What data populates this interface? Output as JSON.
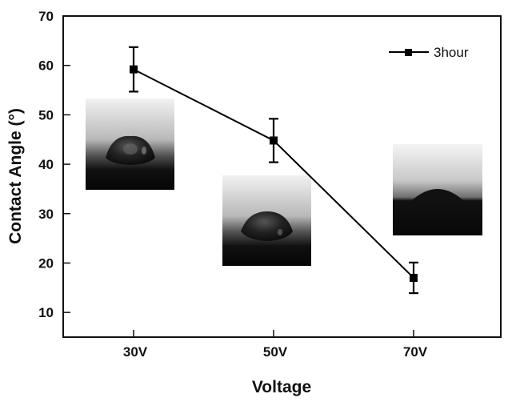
{
  "chart_data": {
    "type": "line",
    "title": "",
    "xlabel": "Voltage",
    "ylabel": "Contact Angle (°)",
    "categories": [
      "30V",
      "50V",
      "70V"
    ],
    "yticks": [
      10,
      20,
      30,
      40,
      50,
      60,
      70
    ],
    "ylim": [
      5,
      70
    ],
    "grid": false,
    "legend_position": "top-right",
    "series": [
      {
        "name": "3hour",
        "values": [
          59.2,
          44.8,
          17.0
        ],
        "error": [
          4.5,
          4.4,
          3.1
        ],
        "color": "#000000",
        "marker": "square"
      }
    ],
    "insets": [
      {
        "category": "30V",
        "description_icon": "droplet-photo-icon"
      },
      {
        "category": "50V",
        "description_icon": "droplet-photo-icon"
      },
      {
        "category": "70V",
        "description_icon": "droplet-photo-icon"
      }
    ]
  }
}
